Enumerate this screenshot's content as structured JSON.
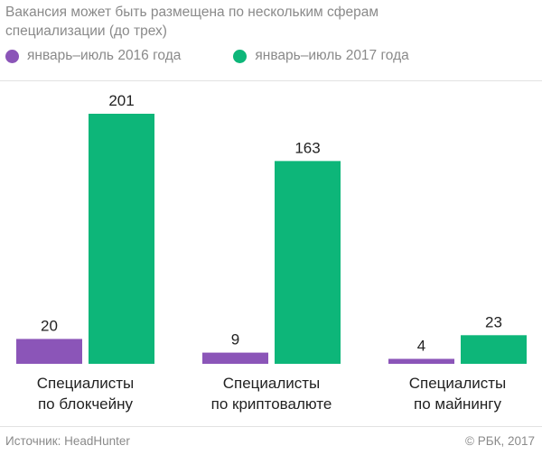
{
  "chart_data": {
    "type": "bar",
    "subtitle": "Вакансия может быть размещена по нескольким сферам специализации (до трех)",
    "categories": [
      [
        "Специалисты",
        "по блокчейну"
      ],
      [
        "Специалисты",
        "по криптовалюте"
      ],
      [
        "Специалисты",
        "по майнингу"
      ]
    ],
    "series": [
      {
        "name": "январь–июль 2016 года",
        "color": "#8b55b8",
        "values": [
          20,
          9,
          4
        ]
      },
      {
        "name": "январь–июль 2017 года",
        "color": "#0db679",
        "values": [
          201,
          163,
          23
        ]
      }
    ],
    "ylim": [
      0,
      201
    ],
    "grid": false,
    "legend_position": "top-left",
    "source": "Источник: HeadHunter",
    "copyright": "© РБК, 2017"
  }
}
